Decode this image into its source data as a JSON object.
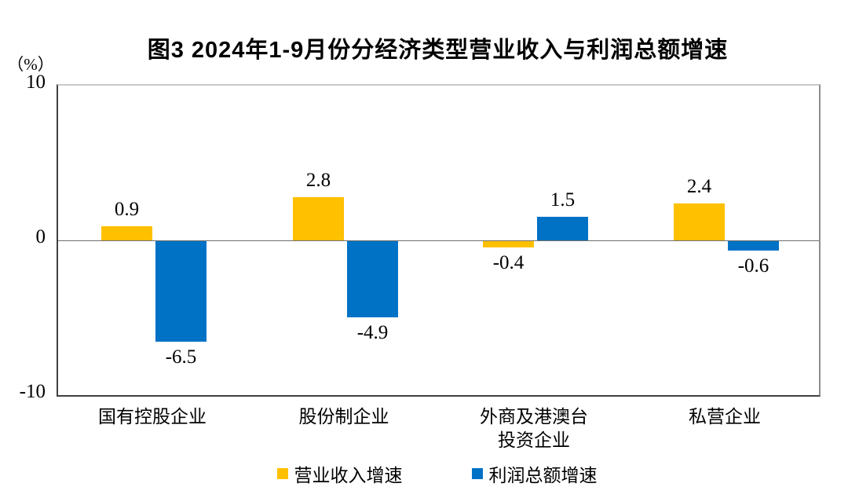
{
  "chart": {
    "title": "图3 2024年1-9月份分经济类型营业收入与利润总额增速",
    "unit_label": "（%）"
  },
  "chart_data": {
    "type": "bar",
    "title": "图3 2024年1-9月份分经济类型营业收入与利润总额增速",
    "unit": "%",
    "categories": [
      "国有控股企业",
      "股份制企业",
      "外商及港澳台\n投资企业",
      "私营企业"
    ],
    "series": [
      {
        "name": "营业收入增速",
        "color": "#FFC000",
        "values": [
          0.9,
          2.8,
          -0.4,
          2.4
        ]
      },
      {
        "name": "利润总额增速",
        "color": "#0072C6",
        "values": [
          -6.5,
          -4.9,
          1.5,
          -0.6
        ]
      }
    ],
    "ylim": [
      -10,
      10
    ],
    "yticks": [
      10,
      0,
      -10
    ],
    "grid": false,
    "zero_line": true,
    "legend_position": "bottom",
    "value_label_decimals": 1
  }
}
